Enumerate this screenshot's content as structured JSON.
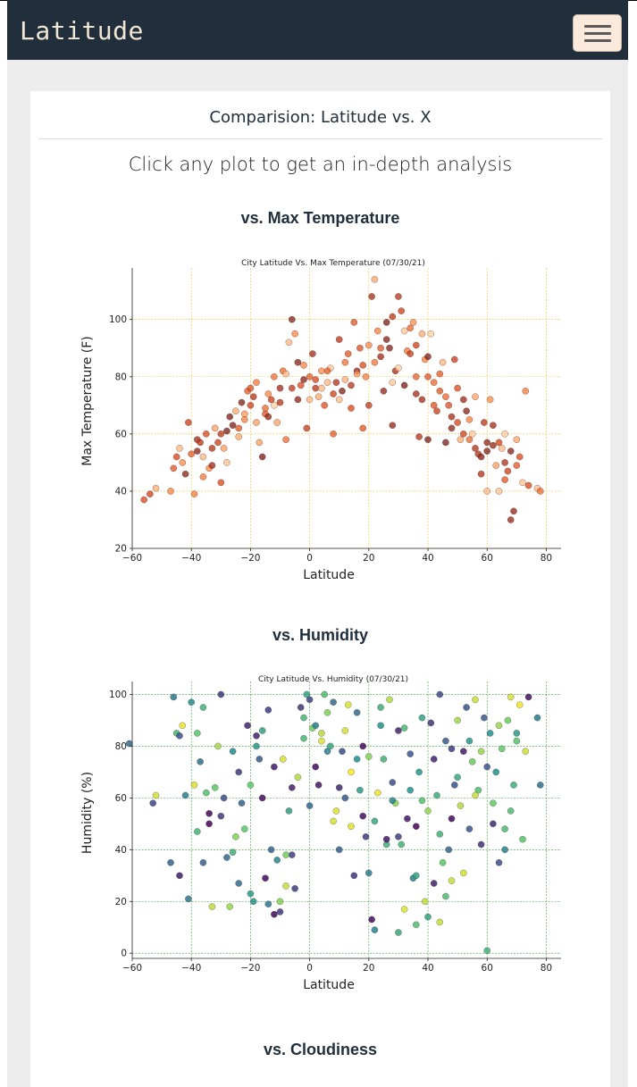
{
  "brand": "Latitude",
  "card": {
    "header": "Comparision: Latitude vs. X",
    "lead": "Click any plot to get an in-depth analysis"
  },
  "sections": [
    {
      "title": "vs. Max Temperature"
    },
    {
      "title": "vs. Humidity"
    },
    {
      "title": "vs. Cloudiness"
    }
  ],
  "colors": {
    "navbar": "#212f3d",
    "brand_text": "#f1e6d3",
    "toggler": "#fbeadb",
    "temp_grid": "#f0c040",
    "humid_grid": "#3a9a3a"
  },
  "chart_data": [
    {
      "type": "scatter",
      "title": "City Latitude Vs. Max Temperature (07/30/21)",
      "xlabel": "Latitude",
      "ylabel": "Max Temperature (F)",
      "xlim": [
        -60,
        85
      ],
      "ylim": [
        20,
        118
      ],
      "xticks": [
        -60,
        -40,
        -20,
        0,
        20,
        40,
        60,
        80
      ],
      "yticks": [
        20,
        40,
        60,
        80,
        100
      ],
      "grid": true,
      "colormap": "Oranges-to-dark-red",
      "points": [
        [
          -56,
          37
        ],
        [
          -54,
          39
        ],
        [
          -52,
          41
        ],
        [
          -47,
          40
        ],
        [
          -46,
          48
        ],
        [
          -45,
          52
        ],
        [
          -44,
          55
        ],
        [
          -42,
          46
        ],
        [
          -41,
          64
        ],
        [
          -40,
          53
        ],
        [
          -39,
          39
        ],
        [
          -38,
          58
        ],
        [
          -37,
          57
        ],
        [
          -36,
          52
        ],
        [
          -35,
          60
        ],
        [
          -34,
          48
        ],
        [
          -33,
          55
        ],
        [
          -32,
          62
        ],
        [
          -31,
          57
        ],
        [
          -30,
          43
        ],
        [
          -29,
          55
        ],
        [
          -28,
          50
        ],
        [
          -27,
          66
        ],
        [
          -26,
          63
        ],
        [
          -25,
          68
        ],
        [
          -24,
          62
        ],
        [
          -23,
          71
        ],
        [
          -22,
          67
        ],
        [
          -21,
          75
        ],
        [
          -20,
          70
        ],
        [
          -19,
          73
        ],
        [
          -18,
          78
        ],
        [
          -17,
          57
        ],
        [
          -16,
          52
        ],
        [
          -15,
          67
        ],
        [
          -14,
          74
        ],
        [
          -13,
          72
        ],
        [
          -12,
          80
        ],
        [
          -11,
          64
        ],
        [
          -10,
          76
        ],
        [
          -9,
          82
        ],
        [
          -8,
          58
        ],
        [
          -7,
          92
        ],
        [
          -6,
          100
        ],
        [
          -5,
          95
        ],
        [
          -4,
          72
        ],
        [
          -3,
          77
        ],
        [
          -2,
          84
        ],
        [
          -1,
          62
        ],
        [
          0,
          80
        ],
        [
          1,
          88
        ],
        [
          2,
          76
        ],
        [
          3,
          73
        ],
        [
          4,
          82
        ],
        [
          5,
          70
        ],
        [
          6,
          78
        ],
        [
          7,
          83
        ],
        [
          8,
          60
        ],
        [
          9,
          78
        ],
        [
          10,
          93
        ],
        [
          11,
          75
        ],
        [
          12,
          85
        ],
        [
          13,
          88
        ],
        [
          14,
          69
        ],
        [
          15,
          99
        ],
        [
          16,
          82
        ],
        [
          17,
          90
        ],
        [
          18,
          62
        ],
        [
          19,
          80
        ],
        [
          20,
          91
        ],
        [
          21,
          108
        ],
        [
          22,
          114
        ],
        [
          23,
          96
        ],
        [
          24,
          87
        ],
        [
          25,
          75
        ],
        [
          26,
          99
        ],
        [
          27,
          90
        ],
        [
          28,
          63
        ],
        [
          29,
          82
        ],
        [
          30,
          108
        ],
        [
          31,
          103
        ],
        [
          32,
          96
        ],
        [
          33,
          89
        ],
        [
          34,
          97
        ],
        [
          35,
          99
        ],
        [
          36,
          80
        ],
        [
          37,
          59
        ],
        [
          38,
          72
        ],
        [
          39,
          86
        ],
        [
          40,
          87
        ],
        [
          41,
          95
        ],
        [
          42,
          78
        ],
        [
          43,
          68
        ],
        [
          44,
          75
        ],
        [
          45,
          85
        ],
        [
          46,
          57
        ],
        [
          47,
          70
        ],
        [
          48,
          62
        ],
        [
          49,
          86
        ],
        [
          50,
          76
        ],
        [
          51,
          58
        ],
        [
          52,
          72
        ],
        [
          53,
          68
        ],
        [
          54,
          65
        ],
        [
          55,
          60
        ],
        [
          56,
          73
        ],
        [
          57,
          53
        ],
        [
          58,
          46
        ],
        [
          59,
          64
        ],
        [
          60,
          57
        ],
        [
          61,
          72
        ],
        [
          62,
          56
        ],
        [
          63,
          49
        ],
        [
          64,
          40
        ],
        [
          65,
          55
        ],
        [
          66,
          60
        ],
        [
          67,
          47
        ],
        [
          68,
          30
        ],
        [
          69,
          33
        ],
        [
          70,
          58
        ],
        [
          71,
          52
        ],
        [
          72,
          43
        ],
        [
          73,
          75
        ],
        [
          74,
          42
        ],
        [
          77,
          41
        ],
        [
          78,
          40
        ],
        [
          -43,
          50
        ],
        [
          -36,
          45
        ],
        [
          -33,
          49
        ],
        [
          -24,
          59
        ],
        [
          -18,
          64
        ],
        [
          -12,
          70
        ],
        [
          -6,
          76
        ],
        [
          0,
          72
        ],
        [
          6,
          82
        ],
        [
          12,
          79
        ],
        [
          18,
          84
        ],
        [
          24,
          90
        ],
        [
          30,
          83
        ],
        [
          36,
          74
        ],
        [
          42,
          70
        ],
        [
          48,
          66
        ],
        [
          54,
          58
        ],
        [
          60,
          54
        ],
        [
          66,
          50
        ],
        [
          -30,
          60
        ],
        [
          -22,
          65
        ],
        [
          -15,
          69
        ],
        [
          -8,
          81
        ],
        [
          -2,
          79
        ],
        [
          4,
          76
        ],
        [
          10,
          72
        ],
        [
          16,
          81
        ],
        [
          22,
          85
        ],
        [
          28,
          78
        ],
        [
          34,
          88
        ],
        [
          40,
          80
        ],
        [
          46,
          73
        ],
        [
          52,
          60
        ],
        [
          58,
          52
        ],
        [
          64,
          57
        ],
        [
          70,
          49
        ],
        [
          38,
          95
        ],
        [
          26,
          93
        ],
        [
          14,
          77
        ],
        [
          2,
          79
        ],
        [
          -4,
          85
        ],
        [
          -10,
          71
        ],
        [
          -20,
          76
        ],
        [
          -28,
          61
        ],
        [
          -38,
          54
        ],
        [
          44,
          81
        ],
        [
          50,
          64
        ],
        [
          56,
          55
        ],
        [
          62,
          63
        ],
        [
          68,
          54
        ],
        [
          8,
          74
        ],
        [
          32,
          77
        ],
        [
          20,
          70
        ],
        [
          -14,
          66
        ],
        [
          66,
          44
        ],
        [
          60,
          40
        ],
        [
          40,
          58
        ],
        [
          36,
          91
        ],
        [
          28,
          101
        ]
      ]
    },
    {
      "type": "scatter",
      "title": "City Latitude Vs. Humidity (07/30/21)",
      "xlabel": "Latitude",
      "ylabel": "Humidity (%)",
      "xlim": [
        -60,
        85
      ],
      "ylim": [
        -2,
        105
      ],
      "xticks": [
        -60,
        -40,
        -20,
        0,
        20,
        40,
        60,
        80
      ],
      "yticks": [
        0,
        20,
        40,
        60,
        80,
        100
      ],
      "grid": true,
      "colormap": "viridis",
      "points": [
        [
          -61,
          81
        ],
        [
          -53,
          58
        ],
        [
          -52,
          61
        ],
        [
          -46,
          99
        ],
        [
          -45,
          85
        ],
        [
          -44,
          84
        ],
        [
          -43,
          88
        ],
        [
          -42,
          61
        ],
        [
          -41,
          21
        ],
        [
          -40,
          97
        ],
        [
          -39,
          65
        ],
        [
          -38,
          85
        ],
        [
          -37,
          74
        ],
        [
          -36,
          95
        ],
        [
          -35,
          62
        ],
        [
          -34,
          54
        ],
        [
          -33,
          18
        ],
        [
          -32,
          64
        ],
        [
          -31,
          80
        ],
        [
          -30,
          100
        ],
        [
          -29,
          60
        ],
        [
          -28,
          37
        ],
        [
          -27,
          18
        ],
        [
          -26,
          39
        ],
        [
          -25,
          45
        ],
        [
          -24,
          27
        ],
        [
          -23,
          58
        ],
        [
          -22,
          48
        ],
        [
          -21,
          88
        ],
        [
          -20,
          65
        ],
        [
          -19,
          20
        ],
        [
          -18,
          80
        ],
        [
          -17,
          75
        ],
        [
          -16,
          86
        ],
        [
          -15,
          29
        ],
        [
          -14,
          19
        ],
        [
          -13,
          40
        ],
        [
          -12,
          15
        ],
        [
          -11,
          36
        ],
        [
          -10,
          16
        ],
        [
          -9,
          75
        ],
        [
          -8,
          26
        ],
        [
          -7,
          55
        ],
        [
          -6,
          38
        ],
        [
          -5,
          25
        ],
        [
          -4,
          68
        ],
        [
          -3,
          95
        ],
        [
          -2,
          91
        ],
        [
          -1,
          100
        ],
        [
          0,
          57
        ],
        [
          1,
          87
        ],
        [
          2,
          72
        ],
        [
          3,
          65
        ],
        [
          4,
          82
        ],
        [
          5,
          100
        ],
        [
          6,
          93
        ],
        [
          7,
          80
        ],
        [
          8,
          51
        ],
        [
          9,
          55
        ],
        [
          10,
          64
        ],
        [
          11,
          78
        ],
        [
          12,
          86
        ],
        [
          13,
          96
        ],
        [
          14,
          49
        ],
        [
          15,
          30
        ],
        [
          16,
          75
        ],
        [
          17,
          63
        ],
        [
          18,
          53
        ],
        [
          19,
          45
        ],
        [
          20,
          31
        ],
        [
          21,
          13
        ],
        [
          22,
          9
        ],
        [
          23,
          62
        ],
        [
          24,
          88
        ],
        [
          25,
          75
        ],
        [
          26,
          42
        ],
        [
          27,
          98
        ],
        [
          28,
          66
        ],
        [
          29,
          58
        ],
        [
          30,
          8
        ],
        [
          31,
          42
        ],
        [
          32,
          17
        ],
        [
          33,
          52
        ],
        [
          34,
          77
        ],
        [
          35,
          29
        ],
        [
          36,
          11
        ],
        [
          37,
          70
        ],
        [
          38,
          59
        ],
        [
          39,
          20
        ],
        [
          40,
          55
        ],
        [
          41,
          89
        ],
        [
          42,
          75
        ],
        [
          43,
          61
        ],
        [
          44,
          100
        ],
        [
          45,
          35
        ],
        [
          46,
          82
        ],
        [
          47,
          40
        ],
        [
          48,
          79
        ],
        [
          49,
          65
        ],
        [
          50,
          90
        ],
        [
          51,
          57
        ],
        [
          52,
          31
        ],
        [
          53,
          95
        ],
        [
          54,
          48
        ],
        [
          55,
          74
        ],
        [
          56,
          98
        ],
        [
          57,
          63
        ],
        [
          58,
          42
        ],
        [
          59,
          91
        ],
        [
          60,
          1
        ],
        [
          61,
          85
        ],
        [
          62,
          58
        ],
        [
          63,
          70
        ],
        [
          64,
          35
        ],
        [
          65,
          79
        ],
        [
          66,
          48
        ],
        [
          67,
          90
        ],
        [
          68,
          55
        ],
        [
          69,
          65
        ],
        [
          70,
          85
        ],
        [
          71,
          96
        ],
        [
          72,
          44
        ],
        [
          73,
          78
        ],
        [
          74,
          99
        ],
        [
          77,
          91
        ],
        [
          78,
          65
        ],
        [
          -47,
          35
        ],
        [
          -44,
          30
        ],
        [
          -36,
          35
        ],
        [
          -30,
          53
        ],
        [
          -24,
          70
        ],
        [
          -18,
          84
        ],
        [
          -12,
          72
        ],
        [
          -6,
          64
        ],
        [
          0,
          98
        ],
        [
          6,
          78
        ],
        [
          12,
          60
        ],
        [
          18,
          80
        ],
        [
          24,
          95
        ],
        [
          30,
          86
        ],
        [
          36,
          49
        ],
        [
          42,
          27
        ],
        [
          48,
          52
        ],
        [
          54,
          82
        ],
        [
          60,
          72
        ],
        [
          66,
          40
        ],
        [
          -34,
          50
        ],
        [
          -20,
          23
        ],
        [
          -8,
          38
        ],
        [
          4,
          85
        ],
        [
          16,
          93
        ],
        [
          28,
          59
        ],
        [
          40,
          14
        ],
        [
          52,
          78
        ],
        [
          64,
          88
        ],
        [
          -26,
          78
        ],
        [
          -14,
          94
        ],
        [
          2,
          88
        ],
        [
          14,
          70
        ],
        [
          26,
          44
        ],
        [
          38,
          91
        ],
        [
          50,
          68
        ],
        [
          62,
          50
        ],
        [
          70,
          82
        ],
        [
          -38,
          47
        ],
        [
          -10,
          20
        ],
        [
          10,
          40
        ],
        [
          22,
          51
        ],
        [
          34,
          63
        ],
        [
          46,
          22
        ],
        [
          58,
          78
        ],
        [
          -2,
          83
        ],
        [
          8,
          97
        ],
        [
          20,
          76
        ],
        [
          32,
          87
        ],
        [
          44,
          46
        ],
        [
          56,
          61
        ],
        [
          68,
          99
        ],
        [
          -16,
          60
        ],
        [
          36,
          30
        ],
        [
          44,
          12
        ],
        [
          48,
          28
        ],
        [
          30,
          45
        ]
      ]
    }
  ]
}
